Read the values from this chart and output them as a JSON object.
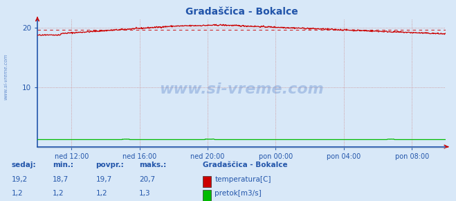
{
  "title": "Gradaščica - Bokalce",
  "background_color": "#d8e8f8",
  "plot_bg_color": "#d8e8f8",
  "x_labels": [
    "ned 12:00",
    "ned 16:00",
    "ned 20:00",
    "pon 00:00",
    "pon 04:00",
    "pon 08:00"
  ],
  "x_tick_positions": [
    72,
    216,
    360,
    504,
    648,
    792
  ],
  "n_points": 864,
  "ylim": [
    0,
    21.5
  ],
  "yticks": [
    10,
    20
  ],
  "temp_color": "#cc0000",
  "flow_color": "#00bb00",
  "dashed_color": "#cc0000",
  "grid_color_h": "#cc8888",
  "grid_color_v": "#cc8888",
  "temp_min": 18.7,
  "temp_max": 20.7,
  "temp_avg": 19.7,
  "flow_min": 1.2,
  "flow_max": 1.3,
  "flow_avg": 1.2,
  "temp_now": 19.2,
  "flow_now": 1.2,
  "stat_labels": [
    "sedaj:",
    "min.:",
    "povpr.:",
    "maks.:"
  ],
  "legend_title": "Gradaščica - Bokalce",
  "legend_temp": "temperatura[C]",
  "legend_flow": "pretok[m3/s]",
  "watermark": "www.si-vreme.com",
  "stat_color": "#2255aa",
  "title_color": "#2255aa",
  "tick_color": "#2255aa",
  "axis_color": "#2255aa",
  "arrow_color": "#cc0000"
}
